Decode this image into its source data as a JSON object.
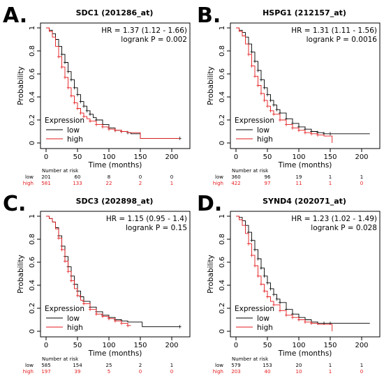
{
  "figure": {
    "colors": {
      "low": "#000000",
      "high": "#e41a1c"
    }
  },
  "chart_data": [
    {
      "type": "line",
      "panel_label": "A.",
      "title": "SDC1 (201286_at)",
      "xlabel": "Time (months)",
      "ylabel": "Probability",
      "xlim": [
        0,
        220
      ],
      "ylim": [
        0,
        1
      ],
      "x_ticks": [
        0,
        50,
        100,
        150,
        200
      ],
      "y_ticks": [
        0.0,
        0.2,
        0.4,
        0.6,
        0.8,
        1.0
      ],
      "hr_text": "HR = 1.37 (1.12 - 1.66)",
      "logrank_text": "logrank P = 0.002",
      "legend": {
        "title": "Expression",
        "items": [
          "low",
          "high"
        ],
        "position": "bottom-left"
      },
      "series": [
        {
          "name": "low",
          "color": "#000000",
          "x": [
            0,
            5,
            10,
            15,
            20,
            25,
            30,
            35,
            40,
            45,
            50,
            55,
            60,
            65,
            70,
            75,
            80,
            90,
            100,
            110,
            120,
            130,
            135,
            150,
            213
          ],
          "y": [
            1.0,
            0.98,
            0.95,
            0.9,
            0.84,
            0.77,
            0.7,
            0.62,
            0.55,
            0.48,
            0.42,
            0.36,
            0.32,
            0.28,
            0.25,
            0.22,
            0.2,
            0.16,
            0.13,
            0.11,
            0.1,
            0.09,
            0.08,
            0.04,
            0.04
          ],
          "censor_x": [
            25,
            30,
            35,
            40,
            45,
            50,
            55,
            60,
            65,
            70,
            80,
            90,
            100,
            110,
            120,
            130,
            213
          ]
        },
        {
          "name": "high",
          "color": "#e41a1c",
          "x": [
            0,
            5,
            10,
            15,
            20,
            25,
            30,
            35,
            40,
            45,
            50,
            55,
            60,
            65,
            70,
            80,
            90,
            100,
            110,
            120,
            130,
            150,
            213
          ],
          "y": [
            1.0,
            0.97,
            0.92,
            0.84,
            0.75,
            0.66,
            0.57,
            0.48,
            0.41,
            0.35,
            0.3,
            0.26,
            0.23,
            0.21,
            0.19,
            0.16,
            0.14,
            0.12,
            0.11,
            0.1,
            0.09,
            0.04,
            0.04
          ],
          "censor_x": [
            20,
            25,
            30,
            35,
            40,
            45,
            50,
            55,
            60,
            70,
            80,
            90,
            100,
            110,
            120
          ]
        }
      ],
      "risk_table": {
        "header": "Number at risk",
        "rows": [
          {
            "group": "low",
            "values": [
              "201",
              "60",
              "8",
              "0",
              "0"
            ]
          },
          {
            "group": "high",
            "values": [
              "581",
              "133",
              "22",
              "2",
              "1"
            ]
          }
        ]
      }
    },
    {
      "type": "line",
      "panel_label": "B.",
      "title": "HSPG1 (212157_at)",
      "xlabel": "Time (months)",
      "ylabel": "Probability",
      "xlim": [
        0,
        220
      ],
      "ylim": [
        0,
        1
      ],
      "x_ticks": [
        0,
        50,
        100,
        150,
        200
      ],
      "y_ticks": [
        0.0,
        0.2,
        0.4,
        0.6,
        0.8,
        1.0
      ],
      "hr_text": "HR = 1.31 (1.11 - 1.56)",
      "logrank_text": "logrank P = 0.0016",
      "legend": {
        "title": "Expression",
        "items": [
          "low",
          "high"
        ],
        "position": "bottom-left"
      },
      "series": [
        {
          "name": "low",
          "color": "#000000",
          "x": [
            0,
            5,
            10,
            15,
            20,
            25,
            30,
            35,
            40,
            45,
            50,
            55,
            60,
            65,
            70,
            80,
            90,
            100,
            110,
            120,
            130,
            140,
            150,
            213
          ],
          "y": [
            1.0,
            0.98,
            0.96,
            0.92,
            0.86,
            0.79,
            0.71,
            0.63,
            0.55,
            0.48,
            0.42,
            0.37,
            0.33,
            0.29,
            0.26,
            0.21,
            0.17,
            0.14,
            0.12,
            0.1,
            0.09,
            0.08,
            0.08,
            0.08
          ],
          "censor_x": [
            20,
            25,
            30,
            35,
            40,
            45,
            50,
            55,
            60,
            65,
            70,
            80,
            90,
            100,
            110,
            120,
            130,
            140,
            150
          ]
        },
        {
          "name": "high",
          "color": "#e41a1c",
          "x": [
            0,
            5,
            10,
            15,
            20,
            25,
            30,
            35,
            40,
            45,
            50,
            55,
            60,
            70,
            80,
            90,
            100,
            110,
            120,
            130,
            140,
            150,
            153
          ],
          "y": [
            1.0,
            0.97,
            0.93,
            0.86,
            0.77,
            0.67,
            0.58,
            0.5,
            0.43,
            0.37,
            0.32,
            0.28,
            0.25,
            0.2,
            0.16,
            0.13,
            0.11,
            0.09,
            0.08,
            0.07,
            0.06,
            0.06,
            0.0
          ],
          "censor_x": [
            20,
            25,
            30,
            35,
            40,
            45,
            50,
            55,
            60,
            70,
            80,
            90,
            100,
            110,
            120,
            130
          ]
        }
      ],
      "risk_table": {
        "header": "Number at risk",
        "rows": [
          {
            "group": "low",
            "values": [
              "360",
              "96",
              "19",
              "1",
              "1"
            ]
          },
          {
            "group": "high",
            "values": [
              "422",
              "97",
              "11",
              "1",
              "0"
            ]
          }
        ]
      }
    },
    {
      "type": "line",
      "panel_label": "C.",
      "title": "SDC3 (202898_at)",
      "xlabel": "Time (months)",
      "ylabel": "Probability",
      "xlim": [
        0,
        220
      ],
      "ylim": [
        0,
        1
      ],
      "x_ticks": [
        0,
        50,
        100,
        150,
        200
      ],
      "y_ticks": [
        0.0,
        0.2,
        0.4,
        0.6,
        0.8,
        1.0
      ],
      "hr_text": "HR = 1.15 (0.95 - 1.4)",
      "logrank_text": "logrank P = 0.15",
      "legend": {
        "title": "Expression",
        "items": [
          "low",
          "high"
        ],
        "position": "bottom-left"
      },
      "series": [
        {
          "name": "low",
          "color": "#000000",
          "x": [
            0,
            5,
            10,
            15,
            20,
            25,
            30,
            35,
            40,
            45,
            50,
            55,
            60,
            70,
            80,
            90,
            100,
            110,
            120,
            130,
            140,
            150,
            153,
            213
          ],
          "y": [
            1.0,
            0.98,
            0.95,
            0.9,
            0.83,
            0.74,
            0.65,
            0.56,
            0.48,
            0.41,
            0.35,
            0.3,
            0.26,
            0.21,
            0.17,
            0.14,
            0.12,
            0.1,
            0.09,
            0.08,
            0.08,
            0.08,
            0.04,
            0.04
          ],
          "censor_x": [
            20,
            25,
            30,
            35,
            40,
            45,
            50,
            55,
            60,
            70,
            80,
            90,
            100,
            110,
            120,
            213
          ]
        },
        {
          "name": "high",
          "color": "#e41a1c",
          "x": [
            0,
            5,
            10,
            15,
            20,
            25,
            30,
            35,
            40,
            45,
            50,
            55,
            60,
            70,
            80,
            90,
            100,
            110,
            120,
            130,
            135
          ],
          "y": [
            1.0,
            0.98,
            0.95,
            0.89,
            0.81,
            0.71,
            0.61,
            0.52,
            0.44,
            0.37,
            0.31,
            0.27,
            0.24,
            0.19,
            0.15,
            0.13,
            0.11,
            0.09,
            0.07,
            0.05,
            0.05
          ],
          "censor_x": [
            20,
            25,
            30,
            35,
            40,
            50,
            60,
            70,
            80,
            90,
            100,
            110,
            120,
            130
          ]
        }
      ],
      "risk_table": {
        "header": "Number at risk",
        "rows": [
          {
            "group": "low",
            "values": [
              "585",
              "154",
              "25",
              "2",
              "1"
            ]
          },
          {
            "group": "high",
            "values": [
              "197",
              "39",
              "5",
              "0",
              "0"
            ]
          }
        ]
      }
    },
    {
      "type": "line",
      "panel_label": "D.",
      "title": "SYND4 (202071_at)",
      "xlabel": "Time (months)",
      "ylabel": "Probability",
      "xlim": [
        0,
        220
      ],
      "ylim": [
        0,
        1
      ],
      "x_ticks": [
        0,
        50,
        100,
        150,
        200
      ],
      "y_ticks": [
        0.0,
        0.2,
        0.4,
        0.6,
        0.8,
        1.0
      ],
      "hr_text": "HR = 1.23 (1.02 - 1.49)",
      "logrank_text": "logrank P = 0.028",
      "legend": {
        "title": "Expression",
        "items": [
          "low",
          "high"
        ],
        "position": "bottom-left"
      },
      "series": [
        {
          "name": "low",
          "color": "#000000",
          "x": [
            0,
            5,
            10,
            15,
            20,
            25,
            30,
            35,
            40,
            45,
            50,
            55,
            60,
            65,
            70,
            80,
            90,
            100,
            110,
            120,
            130,
            140,
            150,
            213
          ],
          "y": [
            1.0,
            0.99,
            0.96,
            0.92,
            0.86,
            0.79,
            0.71,
            0.63,
            0.55,
            0.48,
            0.42,
            0.37,
            0.32,
            0.28,
            0.25,
            0.19,
            0.15,
            0.12,
            0.1,
            0.08,
            0.07,
            0.07,
            0.07,
            0.07
          ],
          "censor_x": [
            20,
            25,
            30,
            35,
            40,
            45,
            50,
            55,
            60,
            65,
            70,
            80,
            90,
            100,
            110,
            120,
            130,
            140,
            150
          ]
        },
        {
          "name": "high",
          "color": "#e41a1c",
          "x": [
            0,
            5,
            10,
            15,
            20,
            25,
            30,
            35,
            40,
            45,
            50,
            55,
            60,
            70,
            80,
            90,
            100,
            110,
            120,
            130,
            150,
            153
          ],
          "y": [
            1.0,
            0.97,
            0.92,
            0.85,
            0.76,
            0.66,
            0.57,
            0.48,
            0.41,
            0.35,
            0.3,
            0.26,
            0.23,
            0.18,
            0.14,
            0.12,
            0.1,
            0.08,
            0.07,
            0.06,
            0.06,
            0.0
          ],
          "censor_x": [
            20,
            25,
            30,
            35,
            40,
            45,
            50,
            60,
            70,
            80,
            90,
            100,
            110,
            120
          ]
        }
      ],
      "risk_table": {
        "header": "Number at risk",
        "rows": [
          {
            "group": "low",
            "values": [
              "579",
              "153",
              "20",
              "1",
              "1"
            ]
          },
          {
            "group": "high",
            "values": [
              "203",
              "40",
              "10",
              "1",
              "0"
            ]
          }
        ]
      }
    }
  ]
}
